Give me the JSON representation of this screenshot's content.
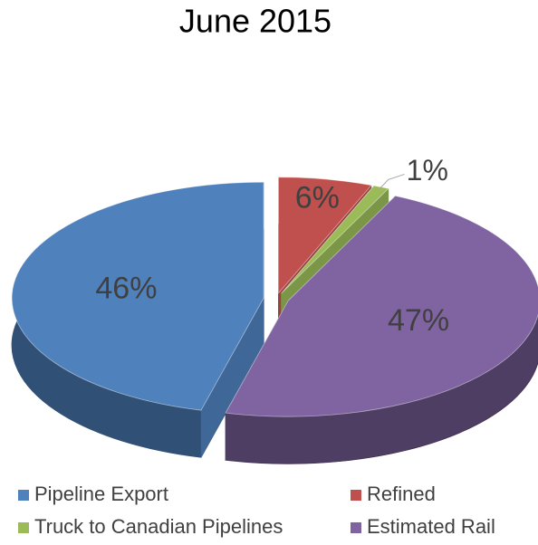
{
  "chart_data": {
    "type": "pie",
    "title": "June 2015",
    "categories": [
      "Pipeline Export",
      "Refined",
      "Truck to Canadian Pipelines",
      "Estimated Rail"
    ],
    "values": [
      46,
      6,
      1,
      47
    ],
    "value_labels": [
      "46%",
      "6%",
      "1%",
      "47%"
    ],
    "colors": [
      "#4f81bd",
      "#c0504d",
      "#9bbb59",
      "#8064a2"
    ],
    "legend": "bottom"
  }
}
